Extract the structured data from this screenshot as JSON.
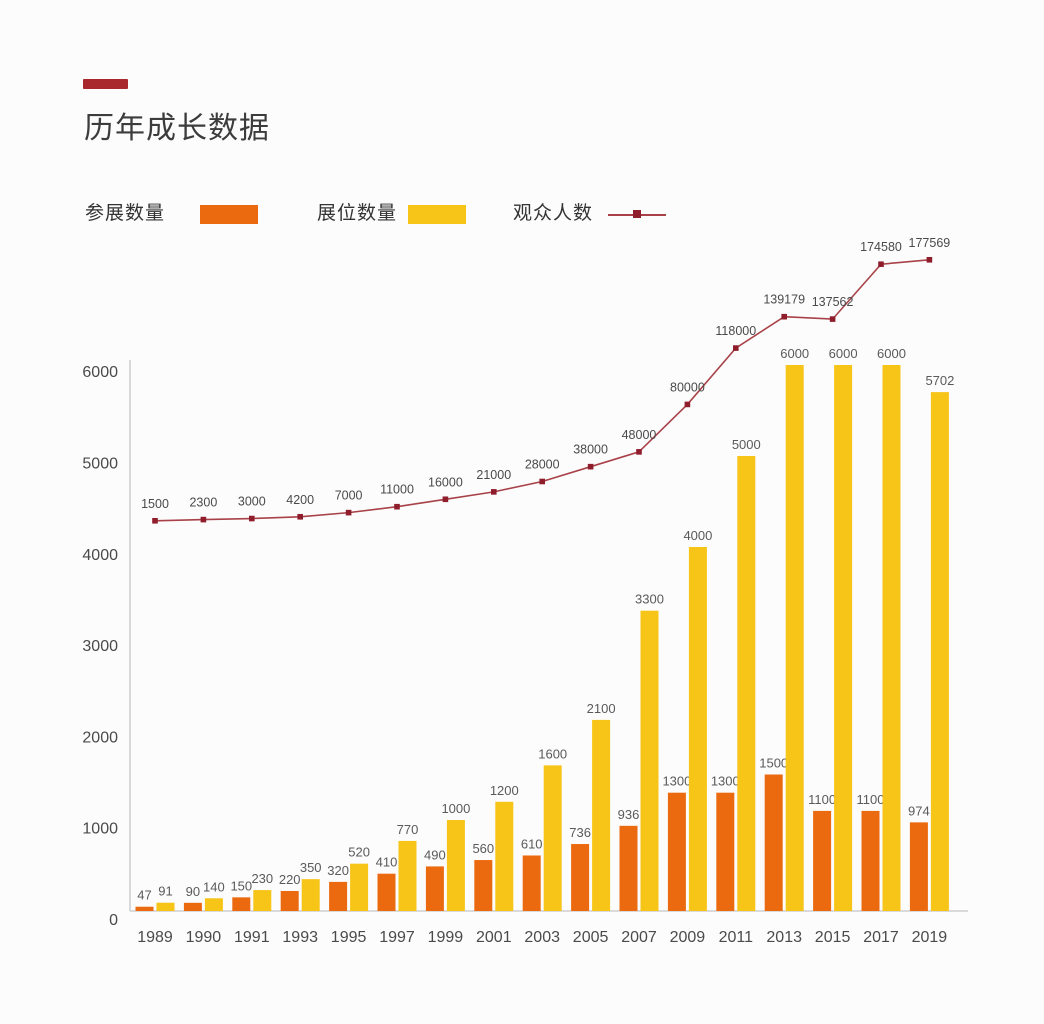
{
  "title": "历年成长数据",
  "legend": {
    "exhibitors": "参展数量",
    "booths": "展位数量",
    "visitors": "观众人数"
  },
  "colors": {
    "accent_bar": "#a8282b",
    "exhibitors": "#eb6a0f",
    "booths": "#f7c418",
    "visitors_line": "#a84248",
    "visitors_marker": "#8f1d2c",
    "axis": "#c6c6c6",
    "tick_text": "#4a4a4a",
    "value_text": "#5a5a5a",
    "title_text": "#3c3c3c"
  },
  "chart_data": {
    "type": "bar",
    "subtype": "grouped-bars-with-secondary-axis-line",
    "title": "历年成长数据",
    "categories": [
      "1989",
      "1990",
      "1991",
      "1993",
      "1995",
      "1997",
      "1999",
      "2001",
      "2003",
      "2005",
      "2007",
      "2009",
      "2011",
      "2013",
      "2015",
      "2017",
      "2019"
    ],
    "series": [
      {
        "name": "参展数量",
        "type": "bar",
        "color": "#eb6a0f",
        "axis": "primary",
        "values": [
          47,
          90,
          150,
          220,
          320,
          410,
          490,
          560,
          610,
          736,
          936,
          1300,
          1300,
          1500,
          1100,
          1100,
          974
        ]
      },
      {
        "name": "展位数量",
        "type": "bar",
        "color": "#f7c418",
        "axis": "primary",
        "values": [
          91,
          140,
          230,
          350,
          520,
          770,
          1000,
          1200,
          1600,
          2100,
          3300,
          4000,
          5000,
          6000,
          6000,
          6000,
          5702
        ]
      },
      {
        "name": "观众人数",
        "type": "line",
        "color": "#a84248",
        "axis": "secondary",
        "values": [
          1500,
          2300,
          3000,
          4200,
          7000,
          11000,
          16000,
          21000,
          28000,
          38000,
          48000,
          80000,
          118000,
          139179,
          137562,
          174580,
          177569
        ]
      }
    ],
    "y_axis": {
      "ticks": [
        0,
        1000,
        2000,
        3000,
        4000,
        5000,
        6000
      ],
      "range": [
        0,
        6000
      ],
      "grid": false
    },
    "secondary_axis": {
      "visible": false,
      "approx_range": [
        0,
        185000
      ]
    },
    "legend_position": "top",
    "value_labels": "all points",
    "xlabel": "",
    "ylabel": ""
  }
}
